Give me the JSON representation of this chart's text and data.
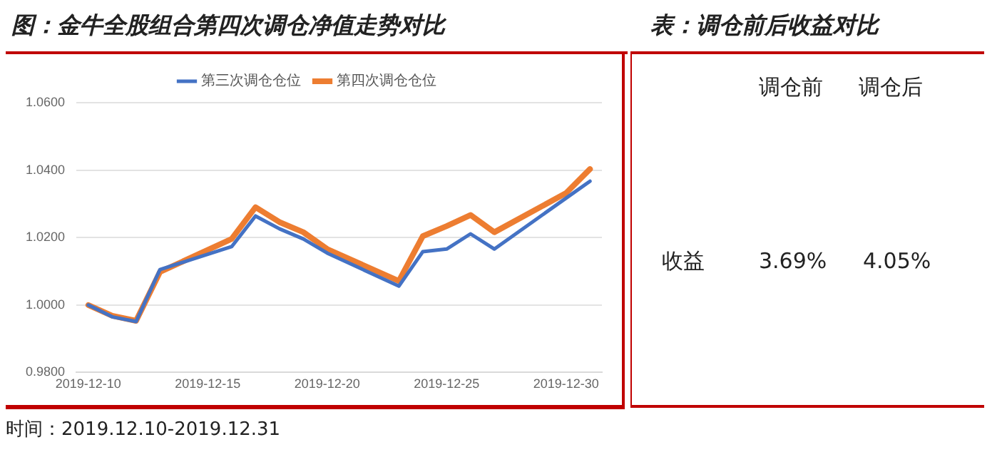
{
  "chart_data": [
    {
      "type": "line",
      "title": "图：金牛全股组合第四次调仓净值走势对比",
      "x": [
        "2019-12-10",
        "2019-12-11",
        "2019-12-12",
        "2019-12-13",
        "2019-12-16",
        "2019-12-17",
        "2019-12-18",
        "2019-12-19",
        "2019-12-20",
        "2019-12-23",
        "2019-12-24",
        "2019-12-25",
        "2019-12-26",
        "2019-12-27",
        "2019-12-30",
        "2019-12-31"
      ],
      "series": [
        {
          "name": "第三次调仓仓位",
          "color": "#4472c4",
          "values": [
            1.0,
            0.9965,
            0.9951,
            1.0105,
            1.0173,
            1.0264,
            1.0226,
            1.0196,
            1.0154,
            1.0056,
            1.0158,
            1.0166,
            1.0211,
            1.0166,
            1.0317,
            1.0367
          ]
        },
        {
          "name": "第四次调仓仓位",
          "color": "#ed7d31",
          "values": [
            1.0,
            0.9968,
            0.9953,
            1.0098,
            1.0196,
            1.029,
            1.0246,
            1.0216,
            1.0166,
            1.0071,
            1.0204,
            1.0234,
            1.0267,
            1.0216,
            1.0332,
            1.0403
          ]
        }
      ],
      "xlim": [
        "2019-12-09T12:00",
        "2019-12-31T12:00"
      ],
      "xticks": [
        "2019-12-10",
        "2019-12-15",
        "2019-12-20",
        "2019-12-25",
        "2019-12-30"
      ],
      "ylim": [
        0.98,
        1.06
      ],
      "yticks": [
        {
          "value": 0.98,
          "label": "0.9800"
        },
        {
          "value": 1.0,
          "label": "1.0000"
        },
        {
          "value": 1.02,
          "label": "1.0200"
        },
        {
          "value": 1.04,
          "label": "1.0400"
        },
        {
          "value": 1.06,
          "label": "1.0600"
        }
      ],
      "grid": "y",
      "legend": "top",
      "marker": "none",
      "line_style": "solid",
      "annotations": [
        "时间：2019.12.10-2019.12.31"
      ]
    },
    {
      "type": "other",
      "title": "表：调仓前后收益对比",
      "annotations": [
        "调仓前",
        "调仓后",
        "收益",
        "3.69%",
        "4.05%"
      ]
    }
  ]
}
